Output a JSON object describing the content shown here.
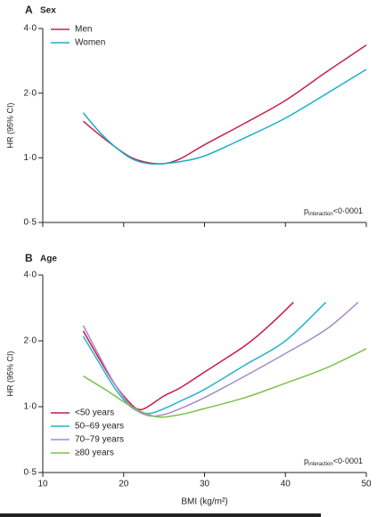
{
  "chart_data": [
    {
      "type": "line",
      "panel": "A",
      "title": "Sex",
      "ylabel": "HR (95% CI)",
      "yscale": "log",
      "legend": "upper left",
      "annotation": [
        "p",
        "interaction",
        "<0·0001"
      ],
      "xlim": [
        10,
        50
      ],
      "xticks": [
        10,
        20,
        30,
        40,
        50
      ],
      "ylim": [
        0.5,
        4
      ],
      "yticks": [
        {
          "value": 0.5,
          "label": "0·5"
        },
        {
          "value": 1,
          "label": "1·0"
        },
        {
          "value": 2,
          "label": "2·0"
        },
        {
          "value": 4,
          "label": "4·0"
        }
      ],
      "series": [
        {
          "name": "Men",
          "color": "#c3234d",
          "x": [
            15,
            17,
            19,
            21,
            23,
            25,
            27,
            30,
            35,
            40,
            45,
            50
          ],
          "values": [
            1.48,
            1.28,
            1.12,
            1.0,
            0.95,
            0.94,
            0.99,
            1.15,
            1.45,
            1.85,
            2.5,
            3.35
          ]
        },
        {
          "name": "Women",
          "color": "#1aafc6",
          "x": [
            15,
            17,
            19,
            21,
            23,
            25,
            27,
            30,
            35,
            40,
            45,
            50
          ],
          "values": [
            1.62,
            1.32,
            1.12,
            0.99,
            0.94,
            0.94,
            0.96,
            1.02,
            1.24,
            1.53,
            1.98,
            2.58
          ]
        }
      ]
    },
    {
      "type": "line",
      "panel": "B",
      "title": "Age",
      "ylabel": "HR (95% CI)",
      "xlabel": "BMI (kg/m²)",
      "yscale": "log",
      "legend": "lower left",
      "annotation": [
        "p",
        "interaction",
        "<0·0001"
      ],
      "xlim": [
        10,
        50
      ],
      "xticks": [
        10,
        20,
        30,
        40,
        50
      ],
      "ylim": [
        0.5,
        4
      ],
      "yticks": [
        {
          "value": 0.5,
          "label": "0·5"
        },
        {
          "value": 1,
          "label": "1·0"
        },
        {
          "value": 2,
          "label": "2·0"
        },
        {
          "value": 4,
          "label": "4·0"
        }
      ],
      "series": [
        {
          "name": "<50 years",
          "color": "#c8184a",
          "x": [
            15,
            17,
            19,
            21,
            22,
            23,
            25,
            27,
            30,
            35,
            38,
            41
          ],
          "values": [
            2.22,
            1.65,
            1.25,
            1.02,
            0.97,
            1.0,
            1.12,
            1.22,
            1.44,
            1.9,
            2.35,
            3.0
          ]
        },
        {
          "name": "50–69 years",
          "color": "#27b3c9",
          "x": [
            15,
            17,
            19,
            21,
            23,
            25,
            27,
            30,
            35,
            40,
            45
          ],
          "values": [
            2.1,
            1.58,
            1.2,
            0.99,
            0.93,
            0.98,
            1.06,
            1.2,
            1.55,
            2.0,
            3.0
          ]
        },
        {
          "name": "70–79 years",
          "color": "#a68ac9",
          "x": [
            15,
            17,
            19,
            21,
            23,
            25,
            27,
            30,
            35,
            40,
            45,
            49
          ],
          "values": [
            2.35,
            1.7,
            1.25,
            1.0,
            0.91,
            0.92,
            0.98,
            1.1,
            1.38,
            1.75,
            2.25,
            3.0
          ]
        },
        {
          "name": "≥80 years",
          "color": "#7cc24a",
          "x": [
            15,
            18,
            21,
            24,
            27,
            30,
            35,
            40,
            45,
            50
          ],
          "values": [
            1.38,
            1.18,
            1.0,
            0.9,
            0.92,
            0.98,
            1.1,
            1.28,
            1.5,
            1.84
          ]
        }
      ]
    }
  ]
}
